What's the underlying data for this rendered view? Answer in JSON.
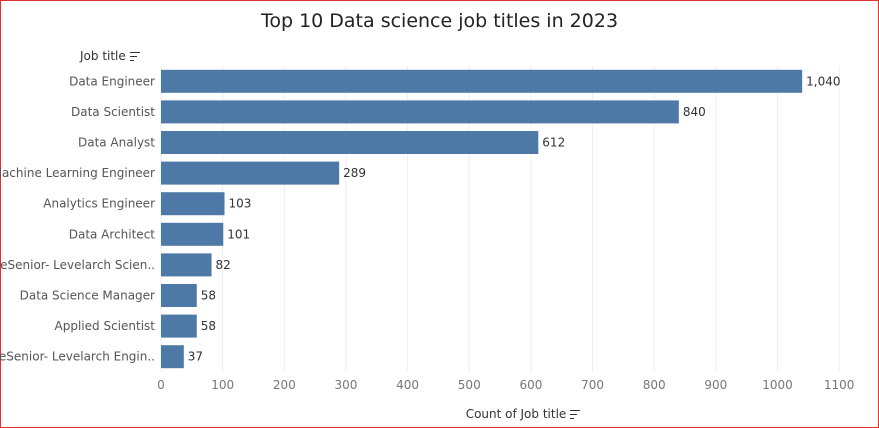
{
  "chart_data": {
    "type": "bar",
    "orientation": "horizontal",
    "title": "Top 10 Data science job titles in 2023",
    "ylabel": "Job title",
    "xlabel": "Count of Job title",
    "categories": [
      "Data Engineer",
      "Data Scientist",
      "Data Analyst",
      "Machine Learning Engineer",
      "Analytics Engineer",
      "Data Architect",
      "ReSenior- Levelarch Scien..",
      "Data Science Manager",
      "Applied Scientist",
      "ReSenior- Levelarch Engin.."
    ],
    "values": [
      1040,
      840,
      612,
      289,
      103,
      101,
      82,
      58,
      58,
      37
    ],
    "value_labels": [
      "1,040",
      "840",
      "612",
      "289",
      "103",
      "101",
      "82",
      "58",
      "58",
      "37"
    ],
    "xticks": [
      0,
      100,
      200,
      300,
      400,
      500,
      600,
      700,
      800,
      900,
      1000,
      1100
    ],
    "xlim": [
      0,
      1100
    ],
    "grid": true,
    "bar_color": "#4e79a7"
  },
  "icons": {
    "sort": "sort-descending-icon"
  }
}
